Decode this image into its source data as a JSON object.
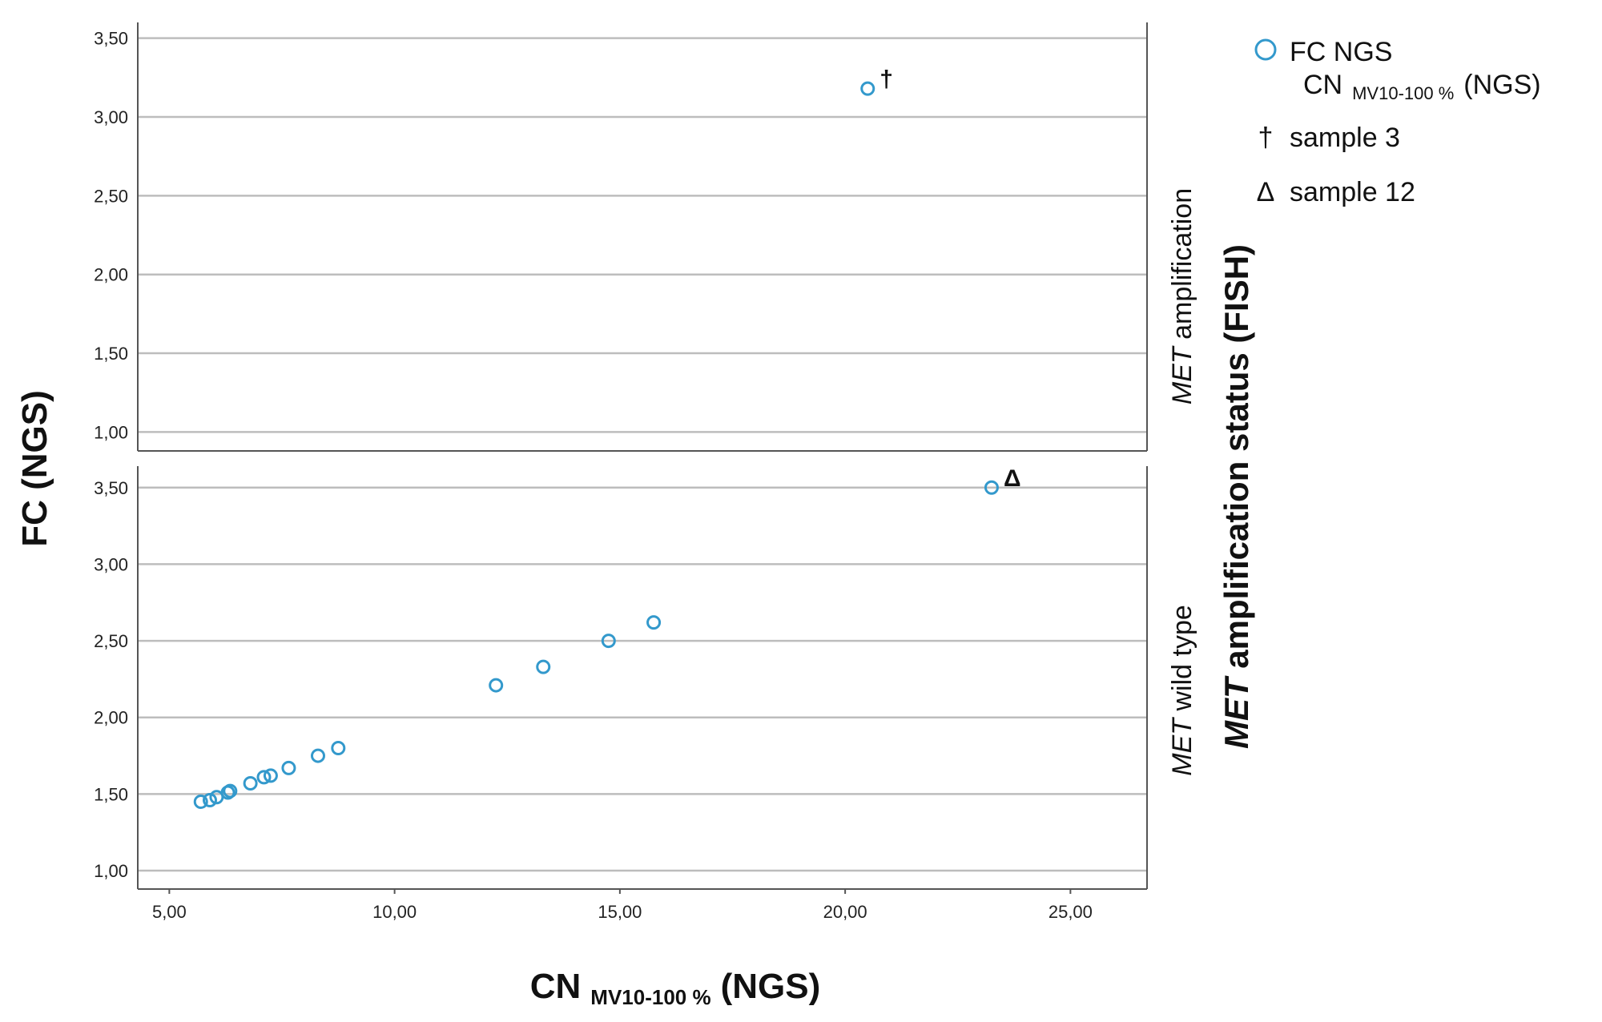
{
  "chart_data": {
    "type": "scatter",
    "xlabel_main": "CN",
    "xlabel_sub": "MV10-100 %",
    "xlabel_suffix": "(NGS)",
    "ylabel": "FC (NGS)",
    "facet_title_italic": "MET",
    "facet_title_rest": " amplification status (FISH)",
    "xlim": [
      4.3,
      26.7
    ],
    "x_ticks": [
      "5,00",
      "10,00",
      "15,00",
      "20,00",
      "25,00"
    ],
    "x_tick_values": [
      5,
      10,
      15,
      20,
      25
    ],
    "grid": true,
    "marker_color": "#3399cc",
    "legend": {
      "position": "top-right",
      "series_line1": "FC NGS",
      "series_line2_main": "CN",
      "series_line2_sub": "MV10-100 %",
      "series_line2_suffix": "(NGS)",
      "notes": [
        {
          "symbol": "†",
          "text": "sample 3"
        },
        {
          "symbol": "Δ",
          "text": "sample 12"
        }
      ]
    },
    "panels": [
      {
        "label_italic": "MET",
        "label_rest": " amplification",
        "ylim": [
          0.88,
          3.6
        ],
        "y_ticks": [
          "1,00",
          "1,50",
          "2,00",
          "2,50",
          "3,00",
          "3,50"
        ],
        "y_tick_values": [
          1.0,
          1.5,
          2.0,
          2.5,
          3.0,
          3.5
        ],
        "points": [
          {
            "x": 20.5,
            "y": 3.18,
            "marker": "†"
          }
        ]
      },
      {
        "label_italic": "MET",
        "label_rest": " wild type",
        "ylim": [
          0.88,
          3.64
        ],
        "y_ticks": [
          "1,00",
          "1,50",
          "2,00",
          "2,50",
          "3,00",
          "3,50"
        ],
        "y_tick_values": [
          1.0,
          1.5,
          2.0,
          2.5,
          3.0,
          3.5
        ],
        "points": [
          {
            "x": 5.7,
            "y": 1.45
          },
          {
            "x": 5.9,
            "y": 1.46
          },
          {
            "x": 6.05,
            "y": 1.48
          },
          {
            "x": 6.3,
            "y": 1.51
          },
          {
            "x": 6.35,
            "y": 1.52
          },
          {
            "x": 6.8,
            "y": 1.57
          },
          {
            "x": 7.1,
            "y": 1.61
          },
          {
            "x": 7.25,
            "y": 1.62
          },
          {
            "x": 7.65,
            "y": 1.67
          },
          {
            "x": 8.3,
            "y": 1.75
          },
          {
            "x": 8.75,
            "y": 1.8
          },
          {
            "x": 12.25,
            "y": 2.21
          },
          {
            "x": 13.3,
            "y": 2.33
          },
          {
            "x": 14.75,
            "y": 2.5
          },
          {
            "x": 15.75,
            "y": 2.62
          },
          {
            "x": 23.25,
            "y": 3.5,
            "marker": "Δ"
          }
        ]
      }
    ]
  }
}
